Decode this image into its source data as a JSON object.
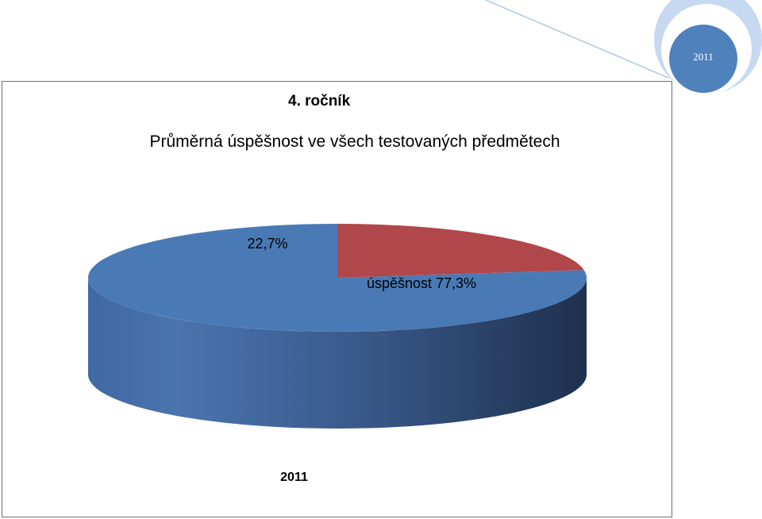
{
  "badge": {
    "year": "2011"
  },
  "chart_data": {
    "type": "pie",
    "title": "4. ročník",
    "subtitle": "Průměrná úspěšnost ve všech testovaných předmětech",
    "footer": "2011",
    "slices": [
      {
        "name": "úspěšnost",
        "value": 77.3,
        "label": "úspěšnost  77,3%",
        "color": "#4a7ab5"
      },
      {
        "name": "",
        "value": 22.7,
        "label": "22,7%",
        "color": "#b0474a"
      }
    ],
    "style": "3d"
  }
}
